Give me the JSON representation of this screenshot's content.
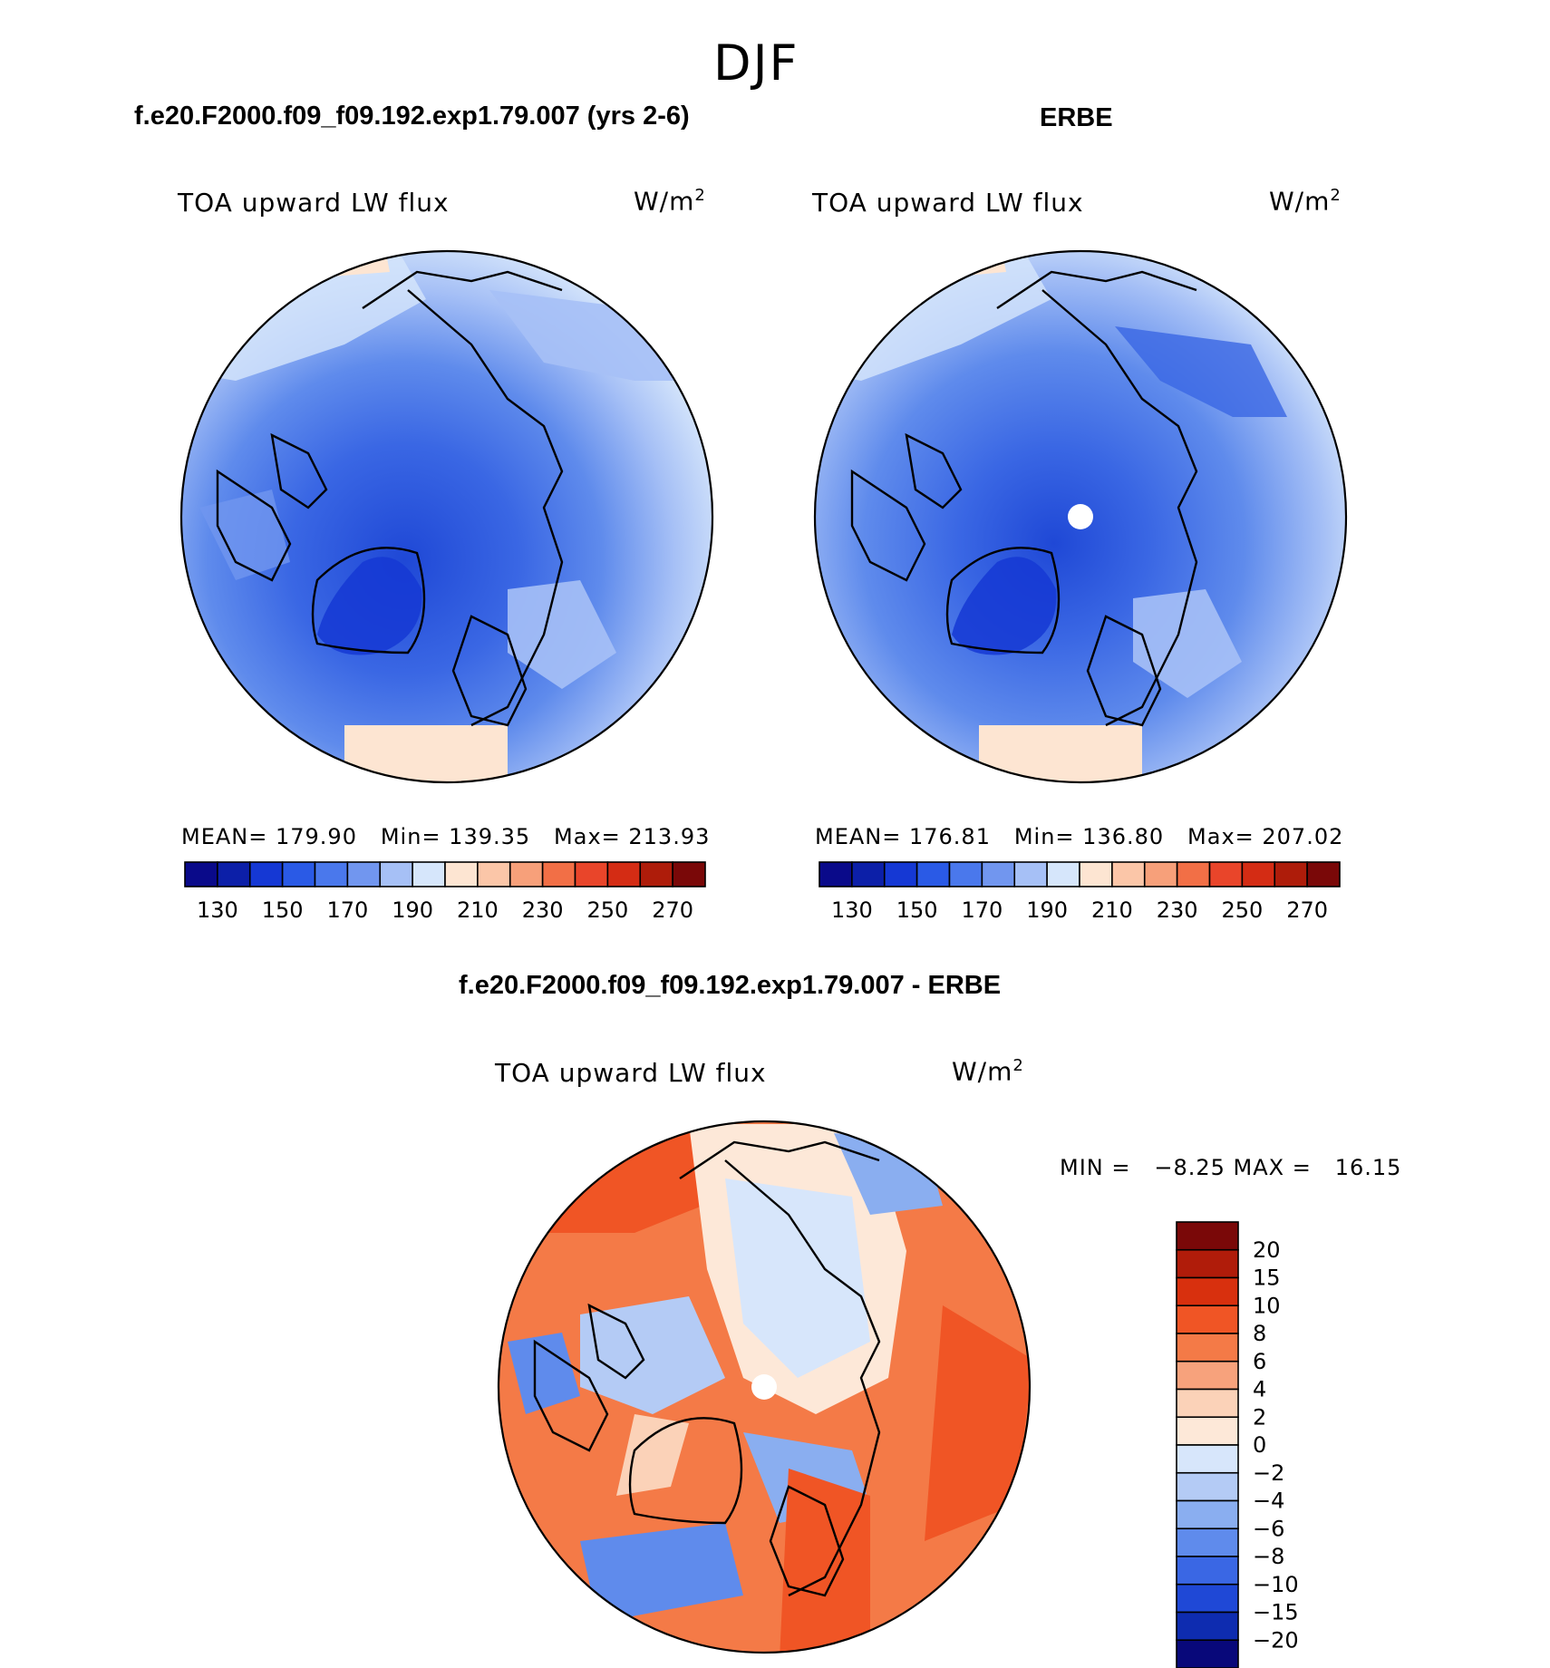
{
  "season": "DJF",
  "panels": {
    "model": {
      "title": "f.e20.F2000.f09_f09.192.exp1.79.007 (yrs 2-6)",
      "variable": "TOA upward LW flux",
      "units": "W/m",
      "units_sup": "2",
      "stats": "MEAN= 179.90   Min= 139.35   Max= 213.93"
    },
    "obs": {
      "title": "ERBE",
      "variable": "TOA upward LW flux",
      "units": "W/m",
      "units_sup": "2",
      "stats": "MEAN= 176.81   Min= 136.80   Max= 207.02"
    },
    "diff": {
      "title": "f.e20.F2000.f09_f09.192.exp1.79.007 - ERBE",
      "variable": "TOA upward LW flux",
      "units": "W/m",
      "units_sup": "2",
      "stats": "MIN =   −8.25 MAX =   16.15"
    }
  },
  "colors": {
    "abs_scale": [
      "#0a0a8a",
      "#0c1fa8",
      "#1538d4",
      "#2a5ae6",
      "#4a78ec",
      "#7196ef",
      "#a6c0f6",
      "#d6e6fb",
      "#fde5d2",
      "#fbc6a8",
      "#f7a07a",
      "#f26f46",
      "#e9452a",
      "#d42c14",
      "#ae1c0a",
      "#7a0808"
    ],
    "diff_scale": [
      "#7a0808",
      "#b01c0a",
      "#d8300e",
      "#f05525",
      "#f47a47",
      "#f7a27c",
      "#fbd2b8",
      "#fde8d8",
      "#d7e6fb",
      "#b4cbf5",
      "#8aaef0",
      "#5f8bec",
      "#3a67e4",
      "#1f48d6",
      "#0e2cb0",
      "#08087a"
    ]
  },
  "chart_data": [
    {
      "type": "heatmap",
      "title": "f.e20.F2000.f09_f09.192.exp1.79.007 (yrs 2-6)",
      "subtitle": "TOA upward LW flux",
      "units": "W/m2",
      "projection": "polar stereographic, north pole",
      "stats": {
        "mean": 179.9,
        "min": 139.35,
        "max": 213.93
      },
      "colorbar": {
        "levels": [
          130,
          140,
          150,
          160,
          170,
          180,
          190,
          200,
          210,
          220,
          230,
          240,
          250,
          260,
          270
        ],
        "tick_labels": [
          "130",
          "150",
          "170",
          "190",
          "210",
          "230",
          "250",
          "270"
        ]
      }
    },
    {
      "type": "heatmap",
      "title": "ERBE",
      "subtitle": "TOA upward LW flux",
      "units": "W/m2",
      "projection": "polar stereographic, north pole",
      "stats": {
        "mean": 176.81,
        "min": 136.8,
        "max": 207.02
      },
      "colorbar": {
        "levels": [
          130,
          140,
          150,
          160,
          170,
          180,
          190,
          200,
          210,
          220,
          230,
          240,
          250,
          260,
          270
        ],
        "tick_labels": [
          "130",
          "150",
          "170",
          "190",
          "210",
          "230",
          "250",
          "270"
        ]
      }
    },
    {
      "type": "heatmap",
      "title": "f.e20.F2000.f09_f09.192.exp1.79.007 - ERBE",
      "subtitle": "TOA upward LW flux",
      "units": "W/m2",
      "projection": "polar stereographic, north pole",
      "stats": {
        "min": -8.25,
        "max": 16.15
      },
      "colorbar": {
        "levels": [
          20,
          15,
          10,
          8,
          6,
          4,
          2,
          0,
          -2,
          -4,
          -6,
          -8,
          -10,
          -15,
          -20
        ],
        "tick_labels": [
          "20",
          "15",
          "10",
          "8",
          "6",
          "4",
          "2",
          "0",
          "−2",
          "−4",
          "−6",
          "−8",
          "−10",
          "−15",
          "−20"
        ]
      }
    }
  ]
}
